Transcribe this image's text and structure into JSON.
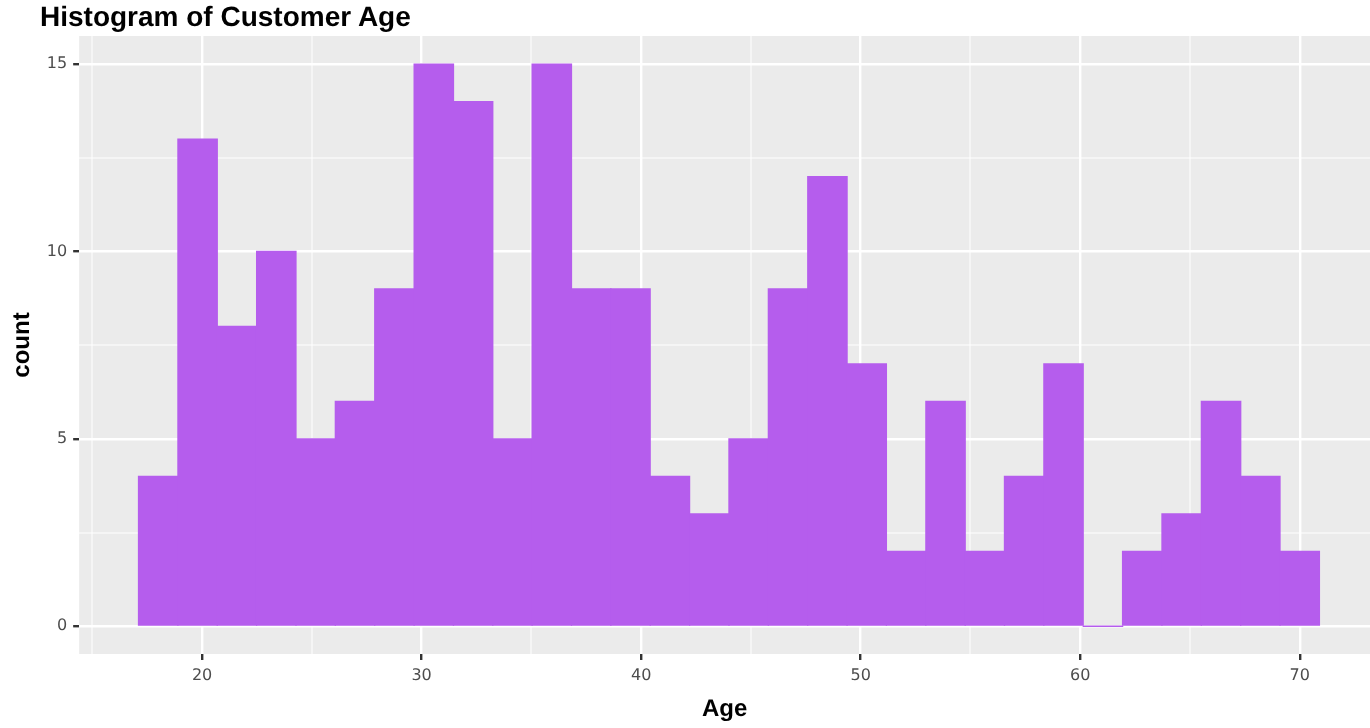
{
  "chart_data": {
    "type": "histogram",
    "title": "Histogram of Customer Age",
    "xlabel": "Age",
    "ylabel": "count",
    "color": "#b55ded",
    "bins": [
      17.1,
      18.9,
      20.69,
      22.48,
      24.28,
      26.07,
      27.86,
      29.66,
      31.45,
      33.24,
      35.03,
      36.83,
      38.62,
      40.41,
      42.21,
      44.0,
      45.79,
      47.59,
      49.38,
      51.17,
      52.97,
      54.76,
      56.55,
      58.34,
      60.14,
      61.93,
      63.72,
      65.52,
      67.31,
      69.1,
      70.9
    ],
    "values": [
      4,
      13,
      8,
      10,
      5,
      6,
      9,
      15,
      14,
      5,
      15,
      9,
      9,
      4,
      3,
      5,
      9,
      12,
      7,
      2,
      6,
      2,
      4,
      7,
      0,
      2,
      3,
      6,
      4,
      2
    ],
    "xlim": [
      14.4,
      73.2
    ],
    "ylim": [
      -0.74,
      15.75
    ],
    "xticks": [
      {
        "value": 15,
        "label": null
      },
      20,
      {
        "value": 25,
        "label": null
      },
      30,
      {
        "value": 35,
        "label": null
      },
      40,
      {
        "value": 45,
        "label": null
      },
      50,
      {
        "value": 55,
        "label": null
      },
      60,
      {
        "value": 65,
        "label": null
      },
      70
    ],
    "yticks": [
      0,
      {
        "value": 2.5,
        "label": null
      },
      5,
      {
        "value": 7.5,
        "label": null
      },
      10,
      {
        "value": 12.5,
        "label": null
      },
      15
    ],
    "grid": true,
    "legend": false
  }
}
